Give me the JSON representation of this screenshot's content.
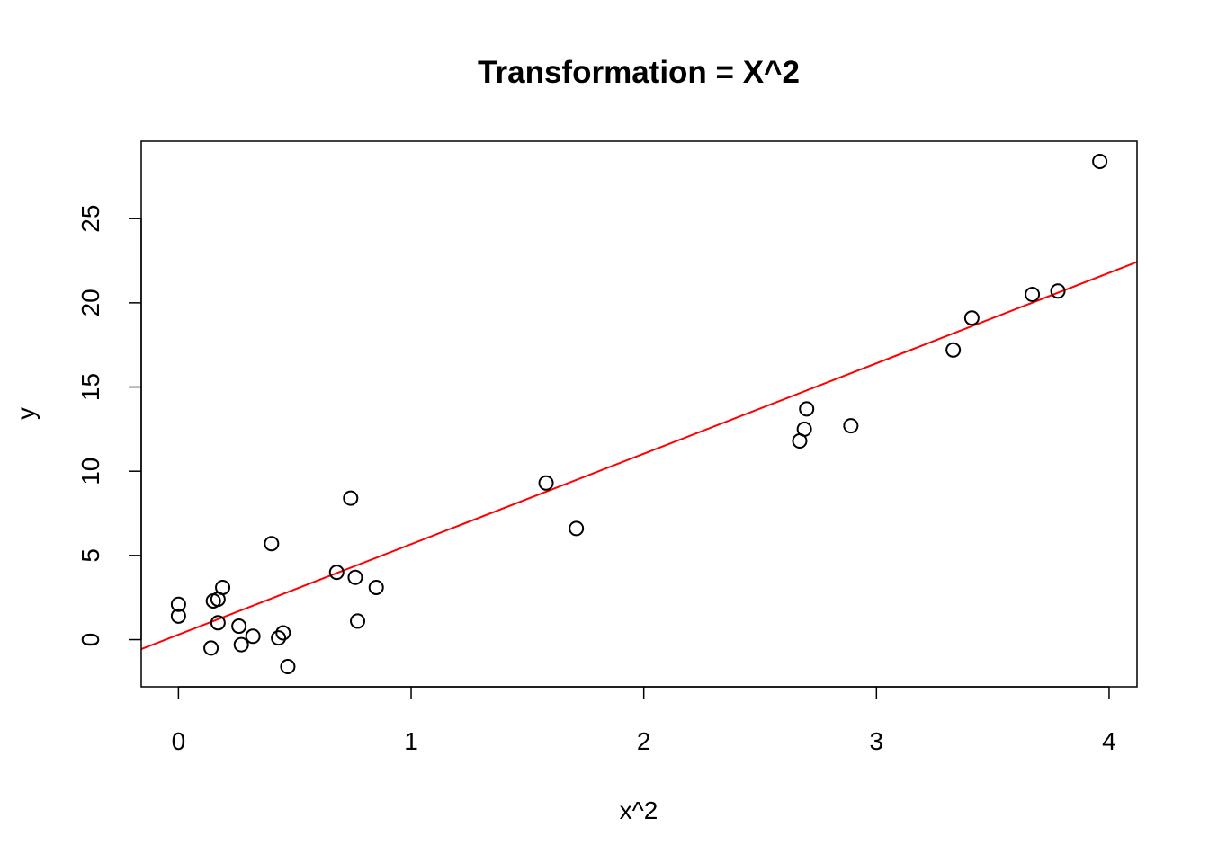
{
  "chart_data": {
    "type": "scatter",
    "title": "Transformation = X^2",
    "xlabel": "x^2",
    "ylabel": "y",
    "xlim": [
      -0.16,
      4.12
    ],
    "ylim": [
      -2.8,
      29.6
    ],
    "x_ticks": [
      0,
      1,
      2,
      3,
      4
    ],
    "y_ticks": [
      0,
      5,
      10,
      15,
      20,
      25
    ],
    "grid": false,
    "point_color": "#000000",
    "fit_line_color": "#ff0000",
    "fit_line": {
      "intercept": 0.3,
      "slope": 5.37
    },
    "points": [
      {
        "x": 0.0,
        "y": 2.1
      },
      {
        "x": 0.0,
        "y": 1.4
      },
      {
        "x": 0.15,
        "y": 2.3
      },
      {
        "x": 0.17,
        "y": 2.4
      },
      {
        "x": 0.19,
        "y": 3.1
      },
      {
        "x": 0.17,
        "y": 1.0
      },
      {
        "x": 0.14,
        "y": -0.5
      },
      {
        "x": 0.26,
        "y": 0.8
      },
      {
        "x": 0.27,
        "y": -0.3
      },
      {
        "x": 0.32,
        "y": 0.2
      },
      {
        "x": 0.4,
        "y": 5.7
      },
      {
        "x": 0.43,
        "y": 0.1
      },
      {
        "x": 0.45,
        "y": 0.4
      },
      {
        "x": 0.47,
        "y": -1.6
      },
      {
        "x": 0.68,
        "y": 4.0
      },
      {
        "x": 0.74,
        "y": 8.4
      },
      {
        "x": 0.76,
        "y": 3.7
      },
      {
        "x": 0.77,
        "y": 1.1
      },
      {
        "x": 0.85,
        "y": 3.1
      },
      {
        "x": 1.58,
        "y": 9.3
      },
      {
        "x": 1.71,
        "y": 6.6
      },
      {
        "x": 2.67,
        "y": 11.8
      },
      {
        "x": 2.69,
        "y": 12.5
      },
      {
        "x": 2.7,
        "y": 13.7
      },
      {
        "x": 2.89,
        "y": 12.7
      },
      {
        "x": 3.33,
        "y": 17.2
      },
      {
        "x": 3.41,
        "y": 19.1
      },
      {
        "x": 3.67,
        "y": 20.5
      },
      {
        "x": 3.78,
        "y": 20.7
      },
      {
        "x": 3.96,
        "y": 28.4
      }
    ]
  }
}
